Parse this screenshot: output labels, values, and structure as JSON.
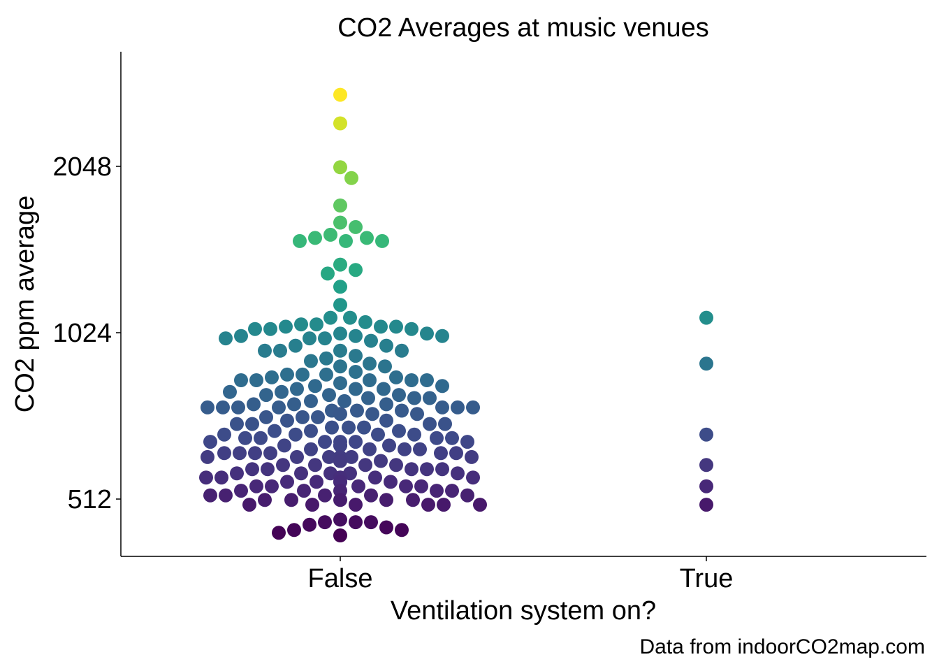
{
  "chart_data": {
    "type": "scatter",
    "subtype": "beeswarm",
    "title": "CO2 Averages at music venues",
    "xlabel": "Ventilation system on?",
    "ylabel": "CO2 ppm average",
    "caption": "Data from indoorCO2map.com",
    "y_scale": "log2",
    "yticks": [
      512,
      1024,
      2048
    ],
    "ylim": [
      410,
      3000
    ],
    "categories": [
      "False",
      "True"
    ],
    "color_scale": "viridis",
    "grid": false,
    "legend": "none",
    "series": [
      {
        "category": "False",
        "values": [
          2760,
          2450,
          2040,
          1950,
          1740,
          1590,
          1620,
          1520,
          1500,
          1500,
          1520,
          1500,
          1540,
          1360,
          1310,
          1330,
          1240,
          1150,
          1090,
          1090,
          1070,
          1060,
          1060,
          1050,
          1050,
          1050,
          1040,
          1040,
          1040,
          1020,
          1020,
          1010,
          1010,
          1010,
          1000,
          1000,
          1000,
          990,
          970,
          970,
          950,
          950,
          950,
          950,
          930,
          920,
          910,
          900,
          890,
          890,
          870,
          860,
          860,
          860,
          850,
          850,
          840,
          840,
          840,
          840,
          840,
          830,
          820,
          820,
          810,
          810,
          810,
          800,
          800,
          790,
          790,
          790,
          780,
          780,
          780,
          770,
          770,
          760,
          760,
          760,
          750,
          750,
          750,
          750,
          750,
          750,
          750,
          740,
          740,
          740,
          730,
          730,
          730,
          720,
          720,
          720,
          710,
          710,
          700,
          700,
          700,
          700,
          690,
          690,
          690,
          680,
          680,
          680,
          670,
          670,
          670,
          670,
          660,
          660,
          660,
          660,
          650,
          650,
          650,
          650,
          650,
          640,
          640,
          640,
          640,
          630,
          630,
          630,
          630,
          620,
          620,
          620,
          620,
          620,
          620,
          610,
          610,
          610,
          610,
          610,
          610,
          600,
          600,
          600,
          600,
          600,
          600,
          590,
          590,
          590,
          590,
          580,
          580,
          580,
          580,
          580,
          570,
          570,
          570,
          570,
          570,
          560,
          560,
          560,
          560,
          560,
          560,
          550,
          550,
          550,
          550,
          550,
          540,
          540,
          540,
          540,
          540,
          530,
          530,
          530,
          530,
          530,
          520,
          520,
          520,
          520,
          520,
          510,
          510,
          510,
          510,
          510,
          500,
          500,
          500,
          500,
          500,
          500,
          470,
          465,
          465,
          465,
          460,
          455,
          450,
          450,
          445,
          440
        ]
      },
      {
        "category": "True",
        "values": [
          1090,
          900,
          670,
          590,
          540,
          500
        ]
      }
    ]
  }
}
